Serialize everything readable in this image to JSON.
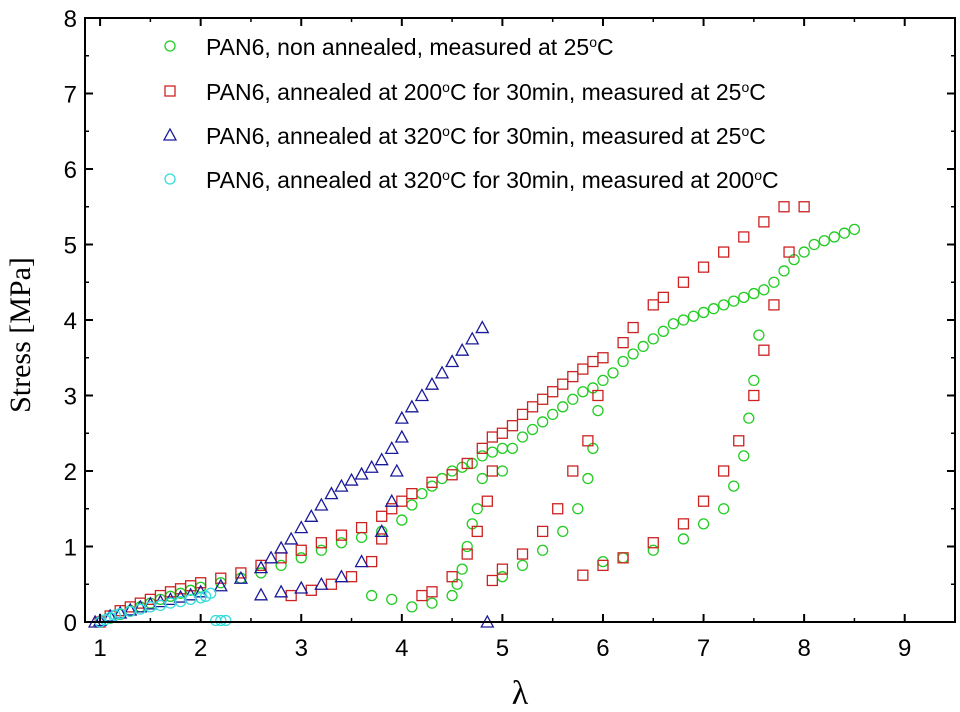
{
  "chart_data": {
    "type": "scatter",
    "xlabel": "λ",
    "ylabel": "Stress [MPa]",
    "xlim": [
      0.85,
      9.5
    ],
    "ylim": [
      0,
      8
    ],
    "x_ticks": [
      1,
      2,
      3,
      4,
      5,
      6,
      7,
      8,
      9
    ],
    "y_ticks": [
      0,
      1,
      2,
      3,
      4,
      5,
      6,
      7,
      8
    ],
    "grid": false,
    "legend_position": "top-left",
    "series": [
      {
        "name": "PAN6, non annealed, measured at 25°C",
        "legend_parts": [
          "PAN6, non annealed, measured at 25",
          "o",
          "C"
        ],
        "marker": "circle",
        "color": "#22cc22",
        "points": [
          [
            1.0,
            0.0
          ],
          [
            1.1,
            0.05
          ],
          [
            1.2,
            0.1
          ],
          [
            1.3,
            0.15
          ],
          [
            1.4,
            0.2
          ],
          [
            1.5,
            0.25
          ],
          [
            1.6,
            0.3
          ],
          [
            1.7,
            0.34
          ],
          [
            1.8,
            0.38
          ],
          [
            1.9,
            0.42
          ],
          [
            2.0,
            0.46
          ],
          [
            2.2,
            0.52
          ],
          [
            2.4,
            0.58
          ],
          [
            2.6,
            0.65
          ],
          [
            2.8,
            0.75
          ],
          [
            3.0,
            0.85
          ],
          [
            3.2,
            0.95
          ],
          [
            3.4,
            1.05
          ],
          [
            3.6,
            1.12
          ],
          [
            3.8,
            1.2
          ],
          [
            4.0,
            1.35
          ],
          [
            4.1,
            1.55
          ],
          [
            4.2,
            1.7
          ],
          [
            4.3,
            1.8
          ],
          [
            4.4,
            1.9
          ],
          [
            4.5,
            2.0
          ],
          [
            4.6,
            2.05
          ],
          [
            4.7,
            2.1
          ],
          [
            4.8,
            2.2
          ],
          [
            4.9,
            2.25
          ],
          [
            5.0,
            2.3
          ],
          [
            4.8,
            1.9
          ],
          [
            4.75,
            1.5
          ],
          [
            4.7,
            1.3
          ],
          [
            4.65,
            1.0
          ],
          [
            4.6,
            0.7
          ],
          [
            4.55,
            0.5
          ],
          [
            4.5,
            0.35
          ],
          [
            4.3,
            0.25
          ],
          [
            4.1,
            0.2
          ],
          [
            3.9,
            0.3
          ],
          [
            3.7,
            0.35
          ],
          [
            5.0,
            2.0
          ],
          [
            5.1,
            2.3
          ],
          [
            5.2,
            2.45
          ],
          [
            5.3,
            2.55
          ],
          [
            5.4,
            2.65
          ],
          [
            5.5,
            2.75
          ],
          [
            5.6,
            2.85
          ],
          [
            5.7,
            2.95
          ],
          [
            5.8,
            3.05
          ],
          [
            5.9,
            3.1
          ],
          [
            6.0,
            3.2
          ],
          [
            5.95,
            2.8
          ],
          [
            5.9,
            2.3
          ],
          [
            5.85,
            1.9
          ],
          [
            5.75,
            1.5
          ],
          [
            5.6,
            1.2
          ],
          [
            5.4,
            0.95
          ],
          [
            5.2,
            0.75
          ],
          [
            5.0,
            0.6
          ],
          [
            6.1,
            3.3
          ],
          [
            6.2,
            3.45
          ],
          [
            6.3,
            3.55
          ],
          [
            6.4,
            3.65
          ],
          [
            6.5,
            3.75
          ],
          [
            6.6,
            3.85
          ],
          [
            6.7,
            3.95
          ],
          [
            6.8,
            4.0
          ],
          [
            6.9,
            4.05
          ],
          [
            7.0,
            4.1
          ],
          [
            7.1,
            4.15
          ],
          [
            7.2,
            4.2
          ],
          [
            7.3,
            4.25
          ],
          [
            7.4,
            4.3
          ],
          [
            7.5,
            4.35
          ],
          [
            7.6,
            4.4
          ],
          [
            7.55,
            3.8
          ],
          [
            7.5,
            3.2
          ],
          [
            7.45,
            2.7
          ],
          [
            7.4,
            2.2
          ],
          [
            7.3,
            1.8
          ],
          [
            7.2,
            1.5
          ],
          [
            7.0,
            1.3
          ],
          [
            6.8,
            1.1
          ],
          [
            6.5,
            0.95
          ],
          [
            6.2,
            0.85
          ],
          [
            6.0,
            0.8
          ],
          [
            7.7,
            4.5
          ],
          [
            7.8,
            4.65
          ],
          [
            7.9,
            4.8
          ],
          [
            8.0,
            4.9
          ],
          [
            8.1,
            5.0
          ],
          [
            8.2,
            5.05
          ],
          [
            8.3,
            5.1
          ],
          [
            8.4,
            5.15
          ],
          [
            8.5,
            5.2
          ]
        ]
      },
      {
        "name": "PAN6, annealed at 200°C for 30min, measured at 25°C",
        "legend_parts": [
          "PAN6, annealed at 200",
          "o",
          "C for 30min, measured at 25",
          "o",
          "C"
        ],
        "marker": "square",
        "color": "#cc2222",
        "points": [
          [
            1.0,
            0.0
          ],
          [
            1.1,
            0.08
          ],
          [
            1.2,
            0.15
          ],
          [
            1.3,
            0.2
          ],
          [
            1.4,
            0.25
          ],
          [
            1.5,
            0.3
          ],
          [
            1.6,
            0.35
          ],
          [
            1.7,
            0.4
          ],
          [
            1.8,
            0.44
          ],
          [
            1.9,
            0.48
          ],
          [
            2.0,
            0.52
          ],
          [
            2.2,
            0.58
          ],
          [
            2.4,
            0.65
          ],
          [
            2.6,
            0.75
          ],
          [
            2.8,
            0.85
          ],
          [
            3.0,
            0.95
          ],
          [
            3.2,
            1.05
          ],
          [
            3.4,
            1.15
          ],
          [
            3.6,
            1.25
          ],
          [
            3.8,
            1.4
          ],
          [
            3.9,
            1.5
          ],
          [
            4.0,
            1.6
          ],
          [
            3.8,
            1.1
          ],
          [
            3.7,
            0.8
          ],
          [
            3.5,
            0.6
          ],
          [
            3.3,
            0.5
          ],
          [
            3.1,
            0.42
          ],
          [
            2.9,
            0.35
          ],
          [
            4.1,
            1.7
          ],
          [
            4.3,
            1.85
          ],
          [
            4.5,
            1.95
          ],
          [
            4.65,
            2.1
          ],
          [
            4.8,
            2.3
          ],
          [
            4.9,
            2.45
          ],
          [
            5.0,
            2.5
          ],
          [
            4.9,
            2.0
          ],
          [
            4.85,
            1.6
          ],
          [
            4.75,
            1.2
          ],
          [
            4.65,
            0.9
          ],
          [
            4.5,
            0.6
          ],
          [
            4.3,
            0.4
          ],
          [
            4.2,
            0.35
          ],
          [
            5.1,
            2.6
          ],
          [
            5.2,
            2.75
          ],
          [
            5.3,
            2.85
          ],
          [
            5.4,
            2.95
          ],
          [
            5.5,
            3.05
          ],
          [
            5.6,
            3.15
          ],
          [
            5.7,
            3.25
          ],
          [
            5.8,
            3.35
          ],
          [
            5.9,
            3.45
          ],
          [
            6.0,
            3.5
          ],
          [
            5.95,
            3.0
          ],
          [
            5.85,
            2.4
          ],
          [
            5.7,
            2.0
          ],
          [
            5.55,
            1.5
          ],
          [
            5.4,
            1.2
          ],
          [
            5.2,
            0.9
          ],
          [
            5.0,
            0.7
          ],
          [
            4.9,
            0.55
          ],
          [
            6.2,
            3.7
          ],
          [
            6.3,
            3.9
          ],
          [
            6.5,
            4.2
          ],
          [
            6.6,
            4.3
          ],
          [
            6.8,
            4.5
          ],
          [
            7.0,
            4.7
          ],
          [
            7.2,
            4.9
          ],
          [
            7.4,
            5.1
          ],
          [
            7.6,
            5.3
          ],
          [
            7.8,
            5.5
          ],
          [
            8.0,
            5.5
          ],
          [
            7.85,
            4.9
          ],
          [
            7.7,
            4.2
          ],
          [
            7.6,
            3.6
          ],
          [
            7.5,
            3.0
          ],
          [
            7.35,
            2.4
          ],
          [
            7.2,
            2.0
          ],
          [
            7.0,
            1.6
          ],
          [
            6.8,
            1.3
          ],
          [
            6.5,
            1.05
          ],
          [
            6.2,
            0.85
          ],
          [
            6.0,
            0.75
          ],
          [
            5.8,
            0.62
          ]
        ]
      },
      {
        "name": "PAN6, annealed at 320°C for 30min, measured at 25°C",
        "legend_parts": [
          "PAN6, annealed at 320",
          "o",
          "C for 30min, measured at 25",
          "o",
          "C"
        ],
        "marker": "triangle",
        "color": "#1a1a99",
        "points": [
          [
            0.95,
            0.0
          ],
          [
            1.0,
            0.02
          ],
          [
            1.1,
            0.08
          ],
          [
            1.2,
            0.12
          ],
          [
            1.3,
            0.16
          ],
          [
            1.4,
            0.2
          ],
          [
            1.5,
            0.24
          ],
          [
            1.6,
            0.27
          ],
          [
            1.7,
            0.3
          ],
          [
            1.8,
            0.33
          ],
          [
            1.9,
            0.36
          ],
          [
            2.0,
            0.4
          ],
          [
            2.2,
            0.48
          ],
          [
            2.4,
            0.58
          ],
          [
            2.6,
            0.72
          ],
          [
            2.7,
            0.85
          ],
          [
            2.8,
            0.98
          ],
          [
            2.9,
            1.1
          ],
          [
            3.0,
            1.25
          ],
          [
            3.1,
            1.4
          ],
          [
            3.2,
            1.55
          ],
          [
            3.3,
            1.7
          ],
          [
            3.4,
            1.8
          ],
          [
            3.5,
            1.88
          ],
          [
            3.6,
            1.96
          ],
          [
            3.7,
            2.05
          ],
          [
            3.8,
            2.15
          ],
          [
            3.9,
            2.3
          ],
          [
            4.0,
            2.45
          ],
          [
            3.95,
            2.0
          ],
          [
            3.9,
            1.6
          ],
          [
            3.8,
            1.2
          ],
          [
            3.6,
            0.8
          ],
          [
            3.4,
            0.6
          ],
          [
            3.2,
            0.5
          ],
          [
            3.0,
            0.45
          ],
          [
            2.8,
            0.4
          ],
          [
            2.6,
            0.36
          ],
          [
            4.0,
            2.7
          ],
          [
            4.1,
            2.85
          ],
          [
            4.2,
            3.0
          ],
          [
            4.3,
            3.15
          ],
          [
            4.4,
            3.3
          ],
          [
            4.5,
            3.45
          ],
          [
            4.6,
            3.6
          ],
          [
            4.7,
            3.75
          ],
          [
            4.8,
            3.9
          ],
          [
            4.85,
            0.0
          ]
        ]
      },
      {
        "name": "PAN6, annealed at 320°C for 30min, measured at 200°C",
        "legend_parts": [
          "PAN6, annealed at 320",
          "o",
          "C for 30min, measured at 200",
          "o",
          "C"
        ],
        "marker": "circle",
        "color": "#33dddd",
        "points": [
          [
            1.0,
            0.0
          ],
          [
            1.05,
            0.03
          ],
          [
            1.1,
            0.06
          ],
          [
            1.15,
            0.09
          ],
          [
            1.2,
            0.11
          ],
          [
            1.3,
            0.14
          ],
          [
            1.4,
            0.17
          ],
          [
            1.5,
            0.2
          ],
          [
            1.6,
            0.22
          ],
          [
            1.7,
            0.25
          ],
          [
            1.8,
            0.27
          ],
          [
            1.9,
            0.3
          ],
          [
            2.0,
            0.32
          ],
          [
            2.05,
            0.34
          ],
          [
            2.1,
            0.38
          ],
          [
            2.15,
            0.02
          ],
          [
            2.2,
            0.02
          ],
          [
            2.25,
            0.02
          ]
        ]
      }
    ]
  }
}
